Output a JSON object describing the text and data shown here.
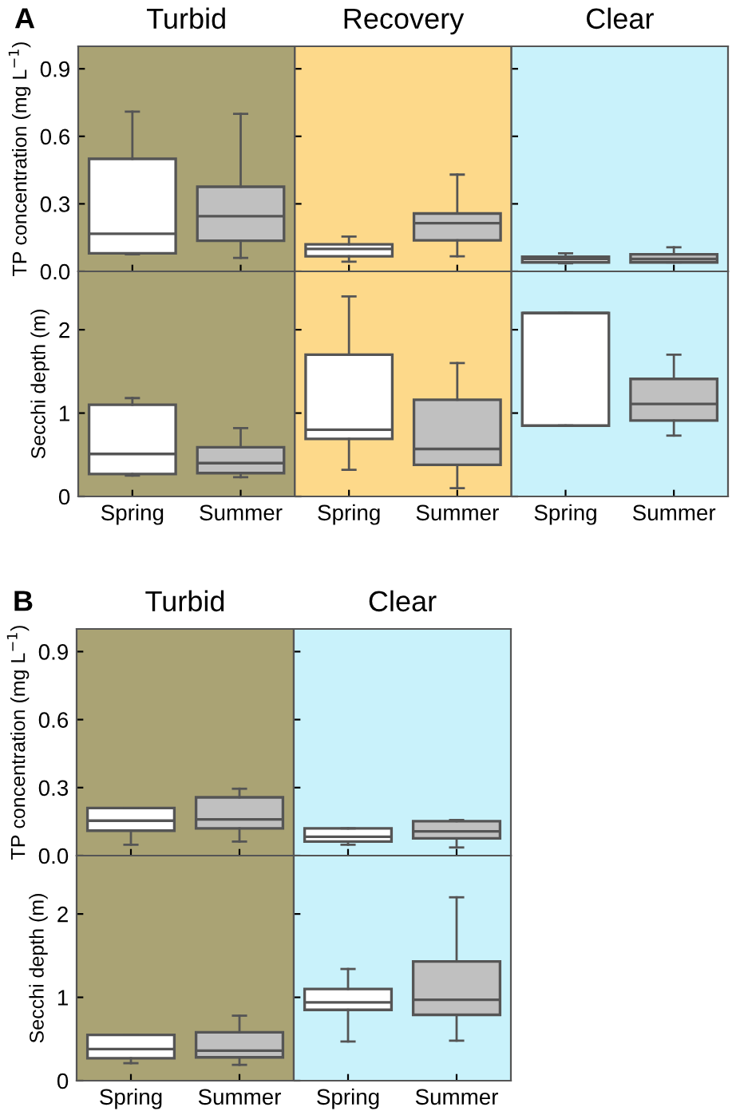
{
  "chart_data": [
    {
      "type": "box",
      "title": "Turbid",
      "ylabel": "TP concentration (mg L$^{−1}$)",
      "annotations": [
        "A"
      ],
      "categories": [
        "Spring",
        "Summer"
      ],
      "colors": [
        "#ffffff",
        "#c0c0c0"
      ],
      "ylim": [
        0,
        1.0
      ],
      "yticks": [
        {
          "value": 0,
          "label": "0.0"
        },
        0.3,
        0.6,
        0.9
      ],
      "tick_labels": "y",
      "bands": [
        {
          "axis": "x",
          "from": "Spring",
          "to": "Summer",
          "color": "#aaa374"
        }
      ],
      "boxes": [
        {
          "low": 0.076,
          "q1": 0.08,
          "median": 0.167,
          "q3": 0.5,
          "high": 0.71
        },
        {
          "low": 0.06,
          "q1": 0.136,
          "median": 0.245,
          "q3": 0.376,
          "high": 0.7
        }
      ]
    },
    {
      "type": "box",
      "title": "Recovery",
      "categories": [
        "Spring",
        "Summer"
      ],
      "colors": [
        "#ffffff",
        "#c0c0c0"
      ],
      "ylim": [
        0,
        1.0
      ],
      "yticks": [
        {
          "value": 0,
          "label": null
        },
        {
          "value": 0.3,
          "label": null
        },
        {
          "value": 0.6,
          "label": null
        },
        {
          "value": 0.9,
          "label": null
        }
      ],
      "tick_labels": false,
      "bands": [
        {
          "axis": "x",
          "from": "Spring",
          "to": "Summer",
          "color": "#fdd98a"
        }
      ],
      "boxes": [
        {
          "low": 0.043,
          "q1": 0.067,
          "median": 0.1,
          "q3": 0.12,
          "high": 0.155
        },
        {
          "low": 0.067,
          "q1": 0.138,
          "median": 0.214,
          "q3": 0.257,
          "high": 0.43
        }
      ]
    },
    {
      "type": "box",
      "title": "Clear",
      "categories": [
        "Spring",
        "Summer"
      ],
      "colors": [
        "#ffffff",
        "#c0c0c0"
      ],
      "ylim": [
        0,
        1.0
      ],
      "yticks": [
        {
          "value": 0,
          "label": null
        },
        {
          "value": 0.3,
          "label": null
        },
        {
          "value": 0.6,
          "label": null
        },
        {
          "value": 0.9,
          "label": null
        }
      ],
      "tick_labels": false,
      "bands": [
        {
          "axis": "x",
          "from": "Spring",
          "to": "Summer",
          "color": "#c9f2fb"
        }
      ],
      "boxes": [
        {
          "low": 0.036,
          "q1": 0.04,
          "median": 0.055,
          "q3": 0.065,
          "high": 0.08
        },
        {
          "low": 0.04,
          "q1": 0.04,
          "median": 0.055,
          "q3": 0.076,
          "high": 0.107
        }
      ]
    },
    {
      "type": "box",
      "ylabel": "Secchi depth (m)",
      "categories": [
        "Spring",
        "Summer"
      ],
      "colors": [
        "#ffffff",
        "#c0c0c0"
      ],
      "ylim": [
        0,
        2.7
      ],
      "yticks": [
        0,
        1,
        2
      ],
      "bands": [
        {
          "axis": "x",
          "from": "Spring",
          "to": "Summer",
          "color": "#aaa374"
        }
      ],
      "boxes": [
        {
          "low": 0.25,
          "q1": 0.27,
          "median": 0.51,
          "q3": 1.1,
          "high": 1.18
        },
        {
          "low": 0.23,
          "q1": 0.28,
          "median": 0.4,
          "q3": 0.59,
          "high": 0.82
        }
      ]
    },
    {
      "type": "box",
      "categories": [
        "Spring",
        "Summer"
      ],
      "colors": [
        "#ffffff",
        "#c0c0c0"
      ],
      "ylim": [
        0,
        2.7
      ],
      "yticks": [
        0,
        1,
        2
      ],
      "tick_labels": "x",
      "bands": [
        {
          "axis": "x",
          "from": "Spring",
          "to": "Summer",
          "color": "#fdd98a"
        }
      ],
      "boxes": [
        {
          "low": 0.32,
          "q1": 0.69,
          "median": 0.8,
          "q3": 1.7,
          "high": 2.4
        },
        {
          "low": 0.1,
          "q1": 0.38,
          "median": 0.57,
          "q3": 1.16,
          "high": 1.6
        }
      ]
    },
    {
      "type": "box",
      "categories": [
        "Spring",
        "Summer"
      ],
      "colors": [
        "#ffffff",
        "#c0c0c0"
      ],
      "ylim": [
        0,
        2.7
      ],
      "yticks": [
        0,
        1,
        2
      ],
      "tick_labels": "x",
      "bands": [
        {
          "axis": "x",
          "from": "Spring",
          "to": "Summer",
          "color": "#c9f2fb"
        }
      ],
      "boxes": [
        {
          "low": 0.85,
          "q1": 0.85,
          "median": 2.2,
          "q3": 2.2,
          "high": 2.2
        },
        {
          "low": 0.73,
          "q1": 0.91,
          "median": 1.11,
          "q3": 1.41,
          "high": 1.7
        }
      ]
    },
    {
      "type": "box",
      "title": "Turbid",
      "ylabel": "TP concentration (mg L$^{−1}$)",
      "annotations": [
        "B"
      ],
      "categories": [
        "Spring",
        "Summer"
      ],
      "colors": [
        "#ffffff",
        "#c0c0c0"
      ],
      "ylim": [
        0,
        1.0
      ],
      "yticks": [
        {
          "value": 0,
          "label": "0.0"
        },
        0.3,
        0.6,
        0.9
      ],
      "tick_labels": "y",
      "bands": [
        {
          "axis": "x",
          "from": "Spring",
          "to": "Summer",
          "color": "#aaa374"
        }
      ],
      "boxes": [
        {
          "low": 0.048,
          "q1": 0.11,
          "median": 0.154,
          "q3": 0.21,
          "high": 0.21
        },
        {
          "low": 0.062,
          "q1": 0.12,
          "median": 0.16,
          "q3": 0.257,
          "high": 0.295
        }
      ]
    },
    {
      "type": "box",
      "title": "Clear",
      "categories": [
        "Spring",
        "Summer"
      ],
      "colors": [
        "#ffffff",
        "#c0c0c0"
      ],
      "ylim": [
        0,
        1.0
      ],
      "yticks": [
        {
          "value": 0,
          "label": null
        },
        {
          "value": 0.3,
          "label": null
        },
        {
          "value": 0.6,
          "label": null
        },
        {
          "value": 0.9,
          "label": null
        }
      ],
      "tick_labels": false,
      "bands": [
        {
          "axis": "x",
          "from": "Spring",
          "to": "Summer",
          "color": "#c9f2fb"
        }
      ],
      "boxes": [
        {
          "low": 0.048,
          "q1": 0.062,
          "median": 0.083,
          "q3": 0.12,
          "high": 0.12
        },
        {
          "low": 0.036,
          "q1": 0.076,
          "median": 0.107,
          "q3": 0.152,
          "high": 0.157
        }
      ]
    },
    {
      "type": "box",
      "ylabel": "Secchi depth (m)",
      "categories": [
        "Spring",
        "Summer"
      ],
      "colors": [
        "#ffffff",
        "#c0c0c0"
      ],
      "ylim": [
        0,
        2.7
      ],
      "yticks": [
        0,
        1,
        2
      ],
      "bands": [
        {
          "axis": "x",
          "from": "Spring",
          "to": "Summer",
          "color": "#aaa374"
        }
      ],
      "boxes": [
        {
          "low": 0.21,
          "q1": 0.27,
          "median": 0.38,
          "q3": 0.55,
          "high": 0.55
        },
        {
          "low": 0.19,
          "q1": 0.28,
          "median": 0.36,
          "q3": 0.58,
          "high": 0.78
        }
      ]
    },
    {
      "type": "box",
      "categories": [
        "Spring",
        "Summer"
      ],
      "colors": [
        "#ffffff",
        "#c0c0c0"
      ],
      "ylim": [
        0,
        2.7
      ],
      "yticks": [
        0,
        1,
        2
      ],
      "tick_labels": "x",
      "bands": [
        {
          "axis": "x",
          "from": "Spring",
          "to": "Summer",
          "color": "#c9f2fb"
        }
      ],
      "boxes": [
        {
          "low": 0.47,
          "q1": 0.85,
          "median": 0.94,
          "q3": 1.1,
          "high": 1.34
        },
        {
          "low": 0.48,
          "q1": 0.79,
          "median": 0.97,
          "q3": 1.43,
          "high": 2.2
        }
      ]
    }
  ]
}
